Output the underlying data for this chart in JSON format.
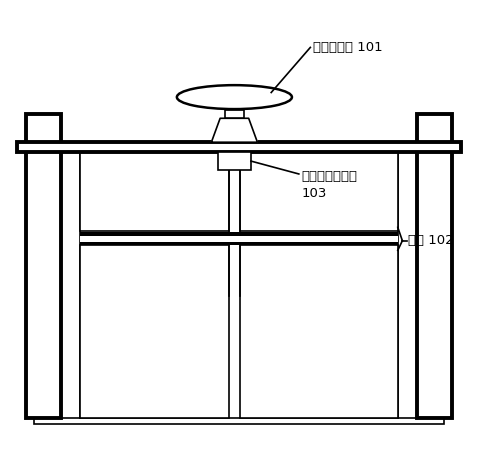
{
  "bg_color": "#ffffff",
  "line_color": "#000000",
  "fig_width": 4.78,
  "fig_height": 4.63,
  "labels": {
    "gate_opener": "闸门启闭机 101",
    "laser_sensor_line1": "激光测距传感器",
    "laser_sensor_line2": "103",
    "gate_panel": "闸板 102"
  },
  "label_fontsize": 9.5
}
